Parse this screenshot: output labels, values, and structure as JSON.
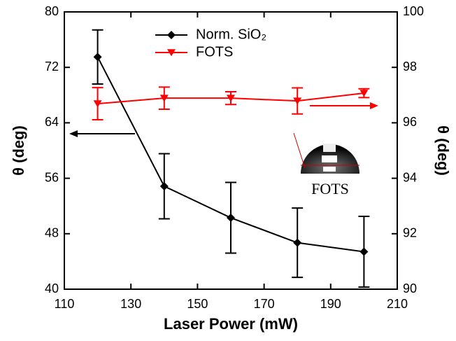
{
  "chart_data": {
    "type": "line",
    "xlabel": "Laser Power (mW)",
    "ylabel": "θ (deg)",
    "y2label": "θ (deg)",
    "xlim": [
      110,
      210
    ],
    "xticks": [
      110,
      130,
      150,
      170,
      190,
      210
    ],
    "ylim": [
      40,
      80
    ],
    "yticks": [
      40,
      48,
      56,
      64,
      72,
      80
    ],
    "y2lim": [
      90,
      100
    ],
    "y2ticks": [
      90,
      92,
      94,
      96,
      98,
      100
    ],
    "legend": "top",
    "annotations": [
      "FOTS"
    ],
    "series": [
      {
        "name": "Norm. SiO₂",
        "color": "#000000",
        "marker": "diamond",
        "x": [
          120,
          140,
          160,
          180,
          200
        ],
        "values": [
          73.5,
          54.85,
          50.3,
          46.7,
          45.4
        ],
        "errors": [
          3.9,
          4.7,
          5.1,
          5.0,
          5.1
        ]
      },
      {
        "name": "FOTS",
        "color": "#ff0000",
        "marker": "triangle-down",
        "axis": "y2",
        "x": [
          120,
          140,
          160,
          180,
          200
        ],
        "values": [
          96.69,
          96.89,
          96.89,
          96.79,
          97.07
        ],
        "errors": [
          0.58,
          0.4,
          0.23,
          0.47,
          0.16
        ]
      }
    ]
  }
}
